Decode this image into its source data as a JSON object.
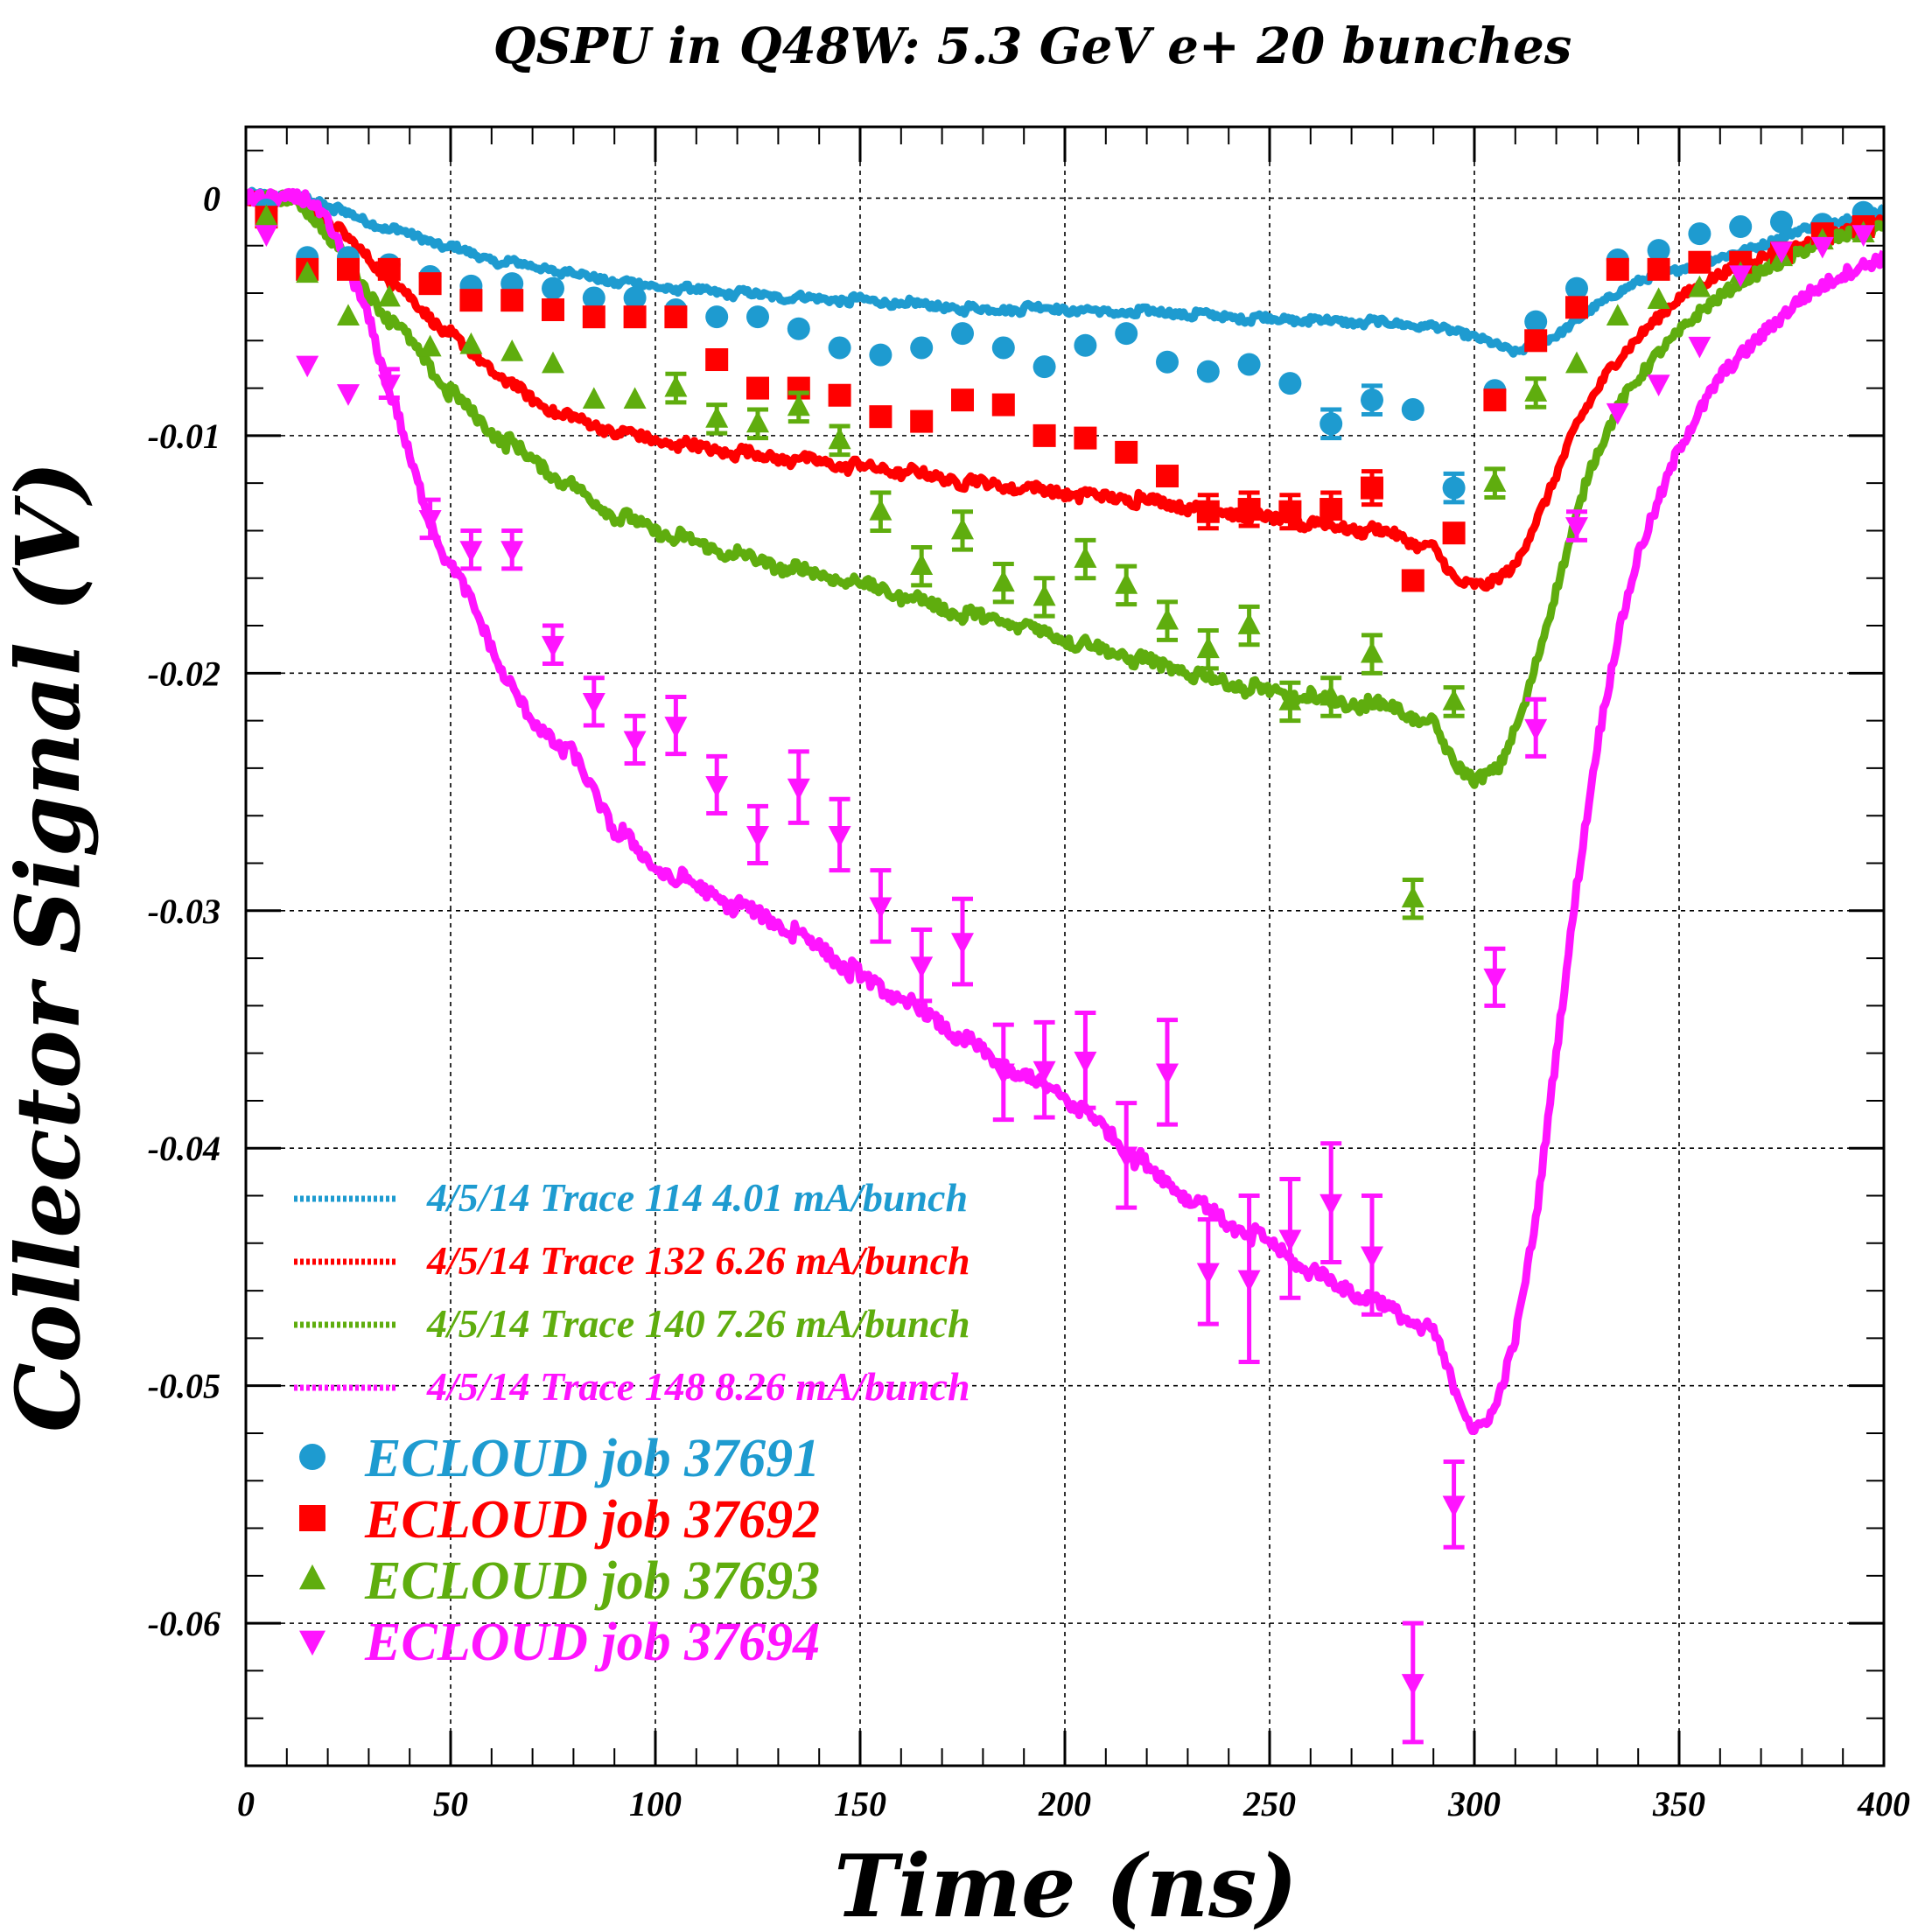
{
  "chart_data": {
    "type": "scatter",
    "title": "QSPU in Q48W:  5.3 GeV e+ 20 bunches",
    "xlabel": "Time (ns)",
    "ylabel": "Collector Signal (V)",
    "xlim": [
      0,
      400
    ],
    "ylim": [
      -0.066,
      0.003
    ],
    "x_ticks": [
      0,
      50,
      100,
      150,
      200,
      250,
      300,
      350,
      400
    ],
    "x_tick_labels": [
      "0",
      "50",
      "100",
      "150",
      "200",
      "250",
      "300",
      "350",
      "400"
    ],
    "y_ticks": [
      0,
      -0.01,
      -0.02,
      -0.03,
      -0.04,
      -0.05,
      -0.06
    ],
    "y_tick_labels": [
      "0",
      "-0.01",
      "-0.02",
      "-0.03",
      "-0.04",
      "-0.05",
      "-0.06"
    ],
    "grid": true,
    "legend_position": "lower-left",
    "lines": [
      {
        "name": "4/5/14 Trace 114  4.01 mA/bunch",
        "color": "#1e9bd0",
        "x": [
          0,
          15,
          30,
          45,
          60,
          75,
          90,
          105,
          120,
          135,
          150,
          165,
          180,
          195,
          210,
          225,
          240,
          255,
          270,
          285,
          295,
          303,
          310,
          320,
          330,
          340,
          350,
          360,
          370,
          380,
          390,
          400
        ],
        "y": [
          0.0002,
          0.0,
          -0.001,
          -0.0018,
          -0.0026,
          -0.003,
          -0.0035,
          -0.0038,
          -0.004,
          -0.0042,
          -0.0043,
          -0.0045,
          -0.0047,
          -0.0046,
          -0.0048,
          -0.0048,
          -0.005,
          -0.0051,
          -0.0052,
          -0.0053,
          -0.0056,
          -0.006,
          -0.0065,
          -0.0058,
          -0.0045,
          -0.0035,
          -0.003,
          -0.0025,
          -0.002,
          -0.0013,
          -0.0009,
          -0.0005
        ]
      },
      {
        "name": "4/5/14 Trace 132  6.26 mA/bunch",
        "color": "#ff0000",
        "x": [
          0,
          12,
          20,
          30,
          40,
          50,
          60,
          70,
          80,
          90,
          100,
          115,
          130,
          145,
          160,
          175,
          190,
          205,
          220,
          235,
          250,
          265,
          280,
          290,
          296,
          303,
          310,
          318,
          325,
          333,
          342,
          350,
          360,
          370,
          380,
          390,
          400
        ],
        "y": [
          0.0,
          0.0,
          -0.001,
          -0.0025,
          -0.0042,
          -0.0058,
          -0.0072,
          -0.0085,
          -0.0093,
          -0.0098,
          -0.0102,
          -0.0106,
          -0.0109,
          -0.0112,
          -0.0115,
          -0.0119,
          -0.0122,
          -0.0125,
          -0.0127,
          -0.0131,
          -0.0135,
          -0.0138,
          -0.0141,
          -0.0148,
          -0.0162,
          -0.0163,
          -0.0155,
          -0.0125,
          -0.0095,
          -0.0072,
          -0.0055,
          -0.0042,
          -0.0032,
          -0.0025,
          -0.002,
          -0.0014,
          -0.001
        ]
      },
      {
        "name": "4/5/14 Trace 140  7.26 mA/bunch",
        "color": "#5fad0e",
        "x": [
          0,
          12,
          20,
          30,
          40,
          50,
          60,
          70,
          80,
          90,
          100,
          115,
          130,
          145,
          160,
          175,
          190,
          205,
          220,
          235,
          250,
          265,
          280,
          290,
          295,
          300,
          306,
          312,
          320,
          328,
          336,
          345,
          355,
          365,
          375,
          385,
          400
        ],
        "y": [
          0.0,
          0.0,
          -0.0015,
          -0.004,
          -0.006,
          -0.0082,
          -0.0098,
          -0.011,
          -0.0122,
          -0.0133,
          -0.014,
          -0.0148,
          -0.0155,
          -0.016,
          -0.0167,
          -0.0175,
          -0.018,
          -0.0188,
          -0.0195,
          -0.0202,
          -0.0208,
          -0.0212,
          -0.0214,
          -0.0222,
          -0.0238,
          -0.0245,
          -0.024,
          -0.0215,
          -0.0165,
          -0.0115,
          -0.0085,
          -0.0065,
          -0.0048,
          -0.0035,
          -0.0027,
          -0.0018,
          -0.0012
        ]
      },
      {
        "name": "4/5/14 Trace 148  8.26 mA/bunch",
        "color": "#ff14ff",
        "x": [
          0,
          10,
          15,
          20,
          25,
          30,
          35,
          40,
          45,
          50,
          55,
          60,
          65,
          70,
          80,
          90,
          100,
          110,
          120,
          130,
          140,
          150,
          160,
          170,
          180,
          190,
          200,
          210,
          220,
          230,
          240,
          250,
          260,
          270,
          280,
          290,
          295,
          300,
          305,
          310,
          315,
          320,
          325,
          330,
          335,
          340,
          350,
          360,
          370,
          380,
          390,
          400
        ],
        "y": [
          0.0,
          0.0,
          0.0,
          -0.001,
          -0.003,
          -0.005,
          -0.008,
          -0.011,
          -0.0135,
          -0.0155,
          -0.017,
          -0.0188,
          -0.0208,
          -0.022,
          -0.0235,
          -0.0265,
          -0.0282,
          -0.029,
          -0.0298,
          -0.0305,
          -0.0315,
          -0.0328,
          -0.0337,
          -0.0348,
          -0.036,
          -0.037,
          -0.0378,
          -0.0392,
          -0.0408,
          -0.042,
          -0.0432,
          -0.044,
          -0.0452,
          -0.046,
          -0.0468,
          -0.0478,
          -0.05,
          -0.052,
          -0.051,
          -0.048,
          -0.043,
          -0.036,
          -0.029,
          -0.023,
          -0.0185,
          -0.015,
          -0.0105,
          -0.0075,
          -0.0058,
          -0.0042,
          -0.0032,
          -0.0025
        ]
      }
    ],
    "series": [
      {
        "name": "ECLOUD job 37691",
        "marker": "circle",
        "color": "#1e9bd0",
        "x": [
          5,
          15,
          25,
          35,
          45,
          55,
          65,
          75,
          85,
          95,
          105,
          115,
          125,
          135,
          145,
          155,
          165,
          175,
          185,
          195,
          205,
          215,
          225,
          235,
          245,
          255,
          265,
          275,
          285,
          295,
          305,
          315,
          325,
          335,
          345,
          355,
          365,
          375,
          385,
          395
        ],
        "y": [
          -0.0005,
          -0.0025,
          -0.0025,
          -0.0028,
          -0.0033,
          -0.0037,
          -0.0036,
          -0.0038,
          -0.0042,
          -0.0042,
          -0.0047,
          -0.005,
          -0.005,
          -0.0055,
          -0.0063,
          -0.0066,
          -0.0063,
          -0.0057,
          -0.0063,
          -0.0071,
          -0.0062,
          -0.0057,
          -0.0069,
          -0.0073,
          -0.007,
          -0.0078,
          -0.0095,
          -0.0085,
          -0.0089,
          -0.0122,
          -0.0081,
          -0.0052,
          -0.0038,
          -0.0026,
          -0.0022,
          -0.0015,
          -0.0012,
          -0.001,
          -0.0011,
          -0.0006
        ],
        "err": [
          0,
          0,
          0,
          0,
          0,
          0,
          0,
          0,
          0,
          0,
          0,
          0,
          0,
          0,
          0,
          0,
          0,
          0,
          0,
          0,
          0,
          0,
          0,
          0,
          0,
          0,
          0.0006,
          0.0006,
          0,
          0.0006,
          0,
          0,
          0,
          0,
          0,
          0,
          0,
          0,
          0,
          0
        ]
      },
      {
        "name": "ECLOUD job 37692",
        "marker": "square",
        "color": "#ff0000",
        "x": [
          5,
          15,
          25,
          35,
          45,
          55,
          65,
          75,
          85,
          95,
          105,
          115,
          125,
          135,
          145,
          155,
          165,
          175,
          185,
          195,
          205,
          215,
          225,
          235,
          245,
          255,
          265,
          275,
          285,
          295,
          305,
          315,
          325,
          335,
          345,
          355,
          365,
          375,
          385,
          395
        ],
        "y": [
          -0.0008,
          -0.003,
          -0.003,
          -0.003,
          -0.0036,
          -0.0043,
          -0.0043,
          -0.0047,
          -0.005,
          -0.005,
          -0.005,
          -0.0068,
          -0.008,
          -0.008,
          -0.0083,
          -0.0092,
          -0.0094,
          -0.0085,
          -0.0087,
          -0.01,
          -0.0101,
          -0.0107,
          -0.0117,
          -0.0132,
          -0.0131,
          -0.0132,
          -0.0131,
          -0.0122,
          -0.0161,
          -0.0141,
          -0.0085,
          -0.006,
          -0.0046,
          -0.003,
          -0.003,
          -0.0027,
          -0.0027,
          -0.0023,
          -0.0015,
          -0.0012
        ],
        "err": [
          0,
          0,
          0,
          0,
          0,
          0,
          0,
          0,
          0,
          0,
          0,
          0,
          0,
          0,
          0,
          0,
          0,
          0,
          0,
          0,
          0,
          0,
          0,
          0.0007,
          0.0007,
          0.0007,
          0.0007,
          0.0007,
          0,
          0,
          0,
          0,
          0,
          0,
          0,
          0,
          0,
          0,
          0,
          0
        ]
      },
      {
        "name": "ECLOUD job 37693",
        "marker": "triangle-up",
        "color": "#5fad0e",
        "x": [
          5,
          15,
          25,
          35,
          45,
          55,
          65,
          75,
          85,
          95,
          105,
          115,
          125,
          135,
          145,
          155,
          165,
          175,
          185,
          195,
          205,
          215,
          225,
          235,
          245,
          255,
          265,
          275,
          285,
          295,
          305,
          315,
          325,
          335,
          345,
          355,
          365,
          375,
          385,
          395
        ],
        "y": [
          -0.0008,
          -0.0032,
          -0.005,
          -0.0042,
          -0.0063,
          -0.0062,
          -0.0065,
          -0.007,
          -0.0085,
          -0.0085,
          -0.008,
          -0.0093,
          -0.0095,
          -0.0088,
          -0.0102,
          -0.0132,
          -0.0155,
          -0.014,
          -0.0162,
          -0.0168,
          -0.0152,
          -0.0163,
          -0.0178,
          -0.019,
          -0.018,
          -0.0212,
          -0.021,
          -0.0192,
          -0.0295,
          -0.0212,
          -0.012,
          -0.0082,
          -0.007,
          -0.005,
          -0.0043,
          -0.0038,
          -0.0032,
          -0.0025,
          -0.0018,
          -0.0015
        ],
        "err": [
          0,
          0,
          0,
          0,
          0,
          0,
          0,
          0,
          0,
          0,
          0.0006,
          0.0006,
          0.0006,
          0.0006,
          0.0006,
          0.0008,
          0.0008,
          0.0008,
          0.0008,
          0.0008,
          0.0008,
          0.0008,
          0.0008,
          0.0008,
          0.0008,
          0.0008,
          0.0008,
          0.0008,
          0.0008,
          0.0006,
          0.0006,
          0.0006,
          0,
          0,
          0,
          0,
          0,
          0,
          0,
          0
        ]
      },
      {
        "name": "ECLOUD job 37694",
        "marker": "triangle-down",
        "color": "#ff14ff",
        "x": [
          5,
          15,
          25,
          35,
          45,
          55,
          65,
          75,
          85,
          95,
          105,
          115,
          125,
          135,
          145,
          155,
          165,
          175,
          185,
          195,
          205,
          215,
          225,
          235,
          245,
          255,
          265,
          275,
          285,
          295,
          305,
          315,
          325,
          335,
          345,
          355,
          365,
          375,
          385,
          395
        ],
        "y": [
          -0.0015,
          -0.007,
          -0.0082,
          -0.0078,
          -0.0135,
          -0.0148,
          -0.0148,
          -0.0188,
          -0.0212,
          -0.0228,
          -0.0222,
          -0.0247,
          -0.0268,
          -0.0248,
          -0.0268,
          -0.0298,
          -0.0323,
          -0.0313,
          -0.0368,
          -0.0367,
          -0.0363,
          -0.0403,
          -0.0368,
          -0.0452,
          -0.0455,
          -0.0438,
          -0.0423,
          -0.0445,
          -0.0625,
          -0.055,
          -0.0328,
          -0.0223,
          -0.0138,
          -0.009,
          -0.0078,
          -0.0062,
          -0.0032,
          -0.0022,
          -0.002,
          -0.0015
        ],
        "err": [
          0,
          0,
          0,
          0.0006,
          0.0008,
          0.0008,
          0.0008,
          0.0008,
          0.001,
          0.001,
          0.0012,
          0.0012,
          0.0012,
          0.0015,
          0.0015,
          0.0015,
          0.0015,
          0.0018,
          0.002,
          0.002,
          0.002,
          0.0022,
          0.0022,
          0.0022,
          0.0035,
          0.0025,
          0.0025,
          0.0025,
          0.0025,
          0.0018,
          0.0012,
          0.0012,
          0.0006,
          0,
          0,
          0,
          0,
          0,
          0,
          0
        ]
      }
    ]
  }
}
